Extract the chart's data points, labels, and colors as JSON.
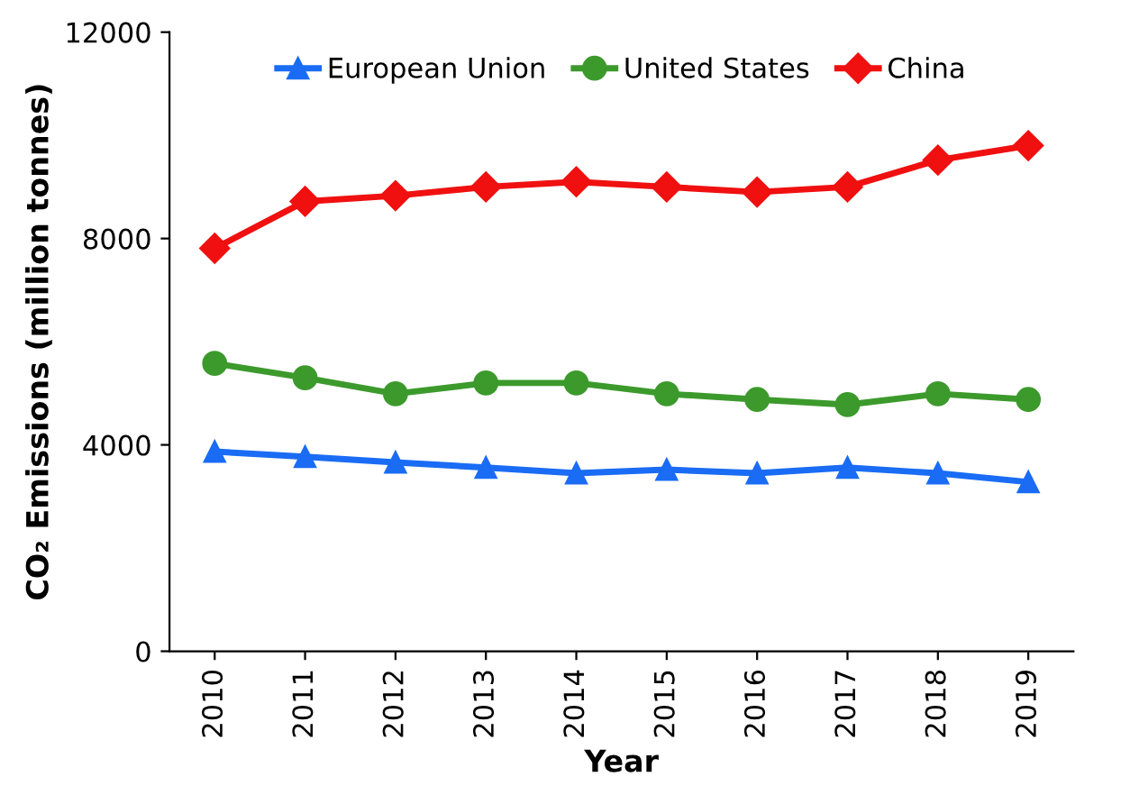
{
  "chart_data": {
    "type": "line",
    "xlabel": "Year",
    "ylabel": "CO₂ Emissions (million tonnes)",
    "categories": [
      "2010",
      "2011",
      "2012",
      "2013",
      "2014",
      "2015",
      "2016",
      "2017",
      "2018",
      "2019"
    ],
    "series": [
      {
        "name": "European Union",
        "color": "#1a6cf5",
        "marker": "triangle",
        "values": [
          3870,
          3770,
          3660,
          3560,
          3450,
          3520,
          3450,
          3560,
          3450,
          3280
        ]
      },
      {
        "name": "United States",
        "color": "#3c9a2c",
        "marker": "circle",
        "values": [
          5580,
          5300,
          4990,
          5200,
          5200,
          4990,
          4880,
          4780,
          4990,
          4880
        ]
      },
      {
        "name": "China",
        "color": "#f01010",
        "marker": "diamond",
        "values": [
          7810,
          8720,
          8830,
          9000,
          9100,
          9000,
          8900,
          9000,
          9520,
          9800
        ]
      }
    ],
    "ylim": [
      0,
      12000
    ],
    "yticks": [
      0,
      4000,
      8000,
      12000
    ],
    "grid": false,
    "legend": "top",
    "line_style": "solid"
  }
}
